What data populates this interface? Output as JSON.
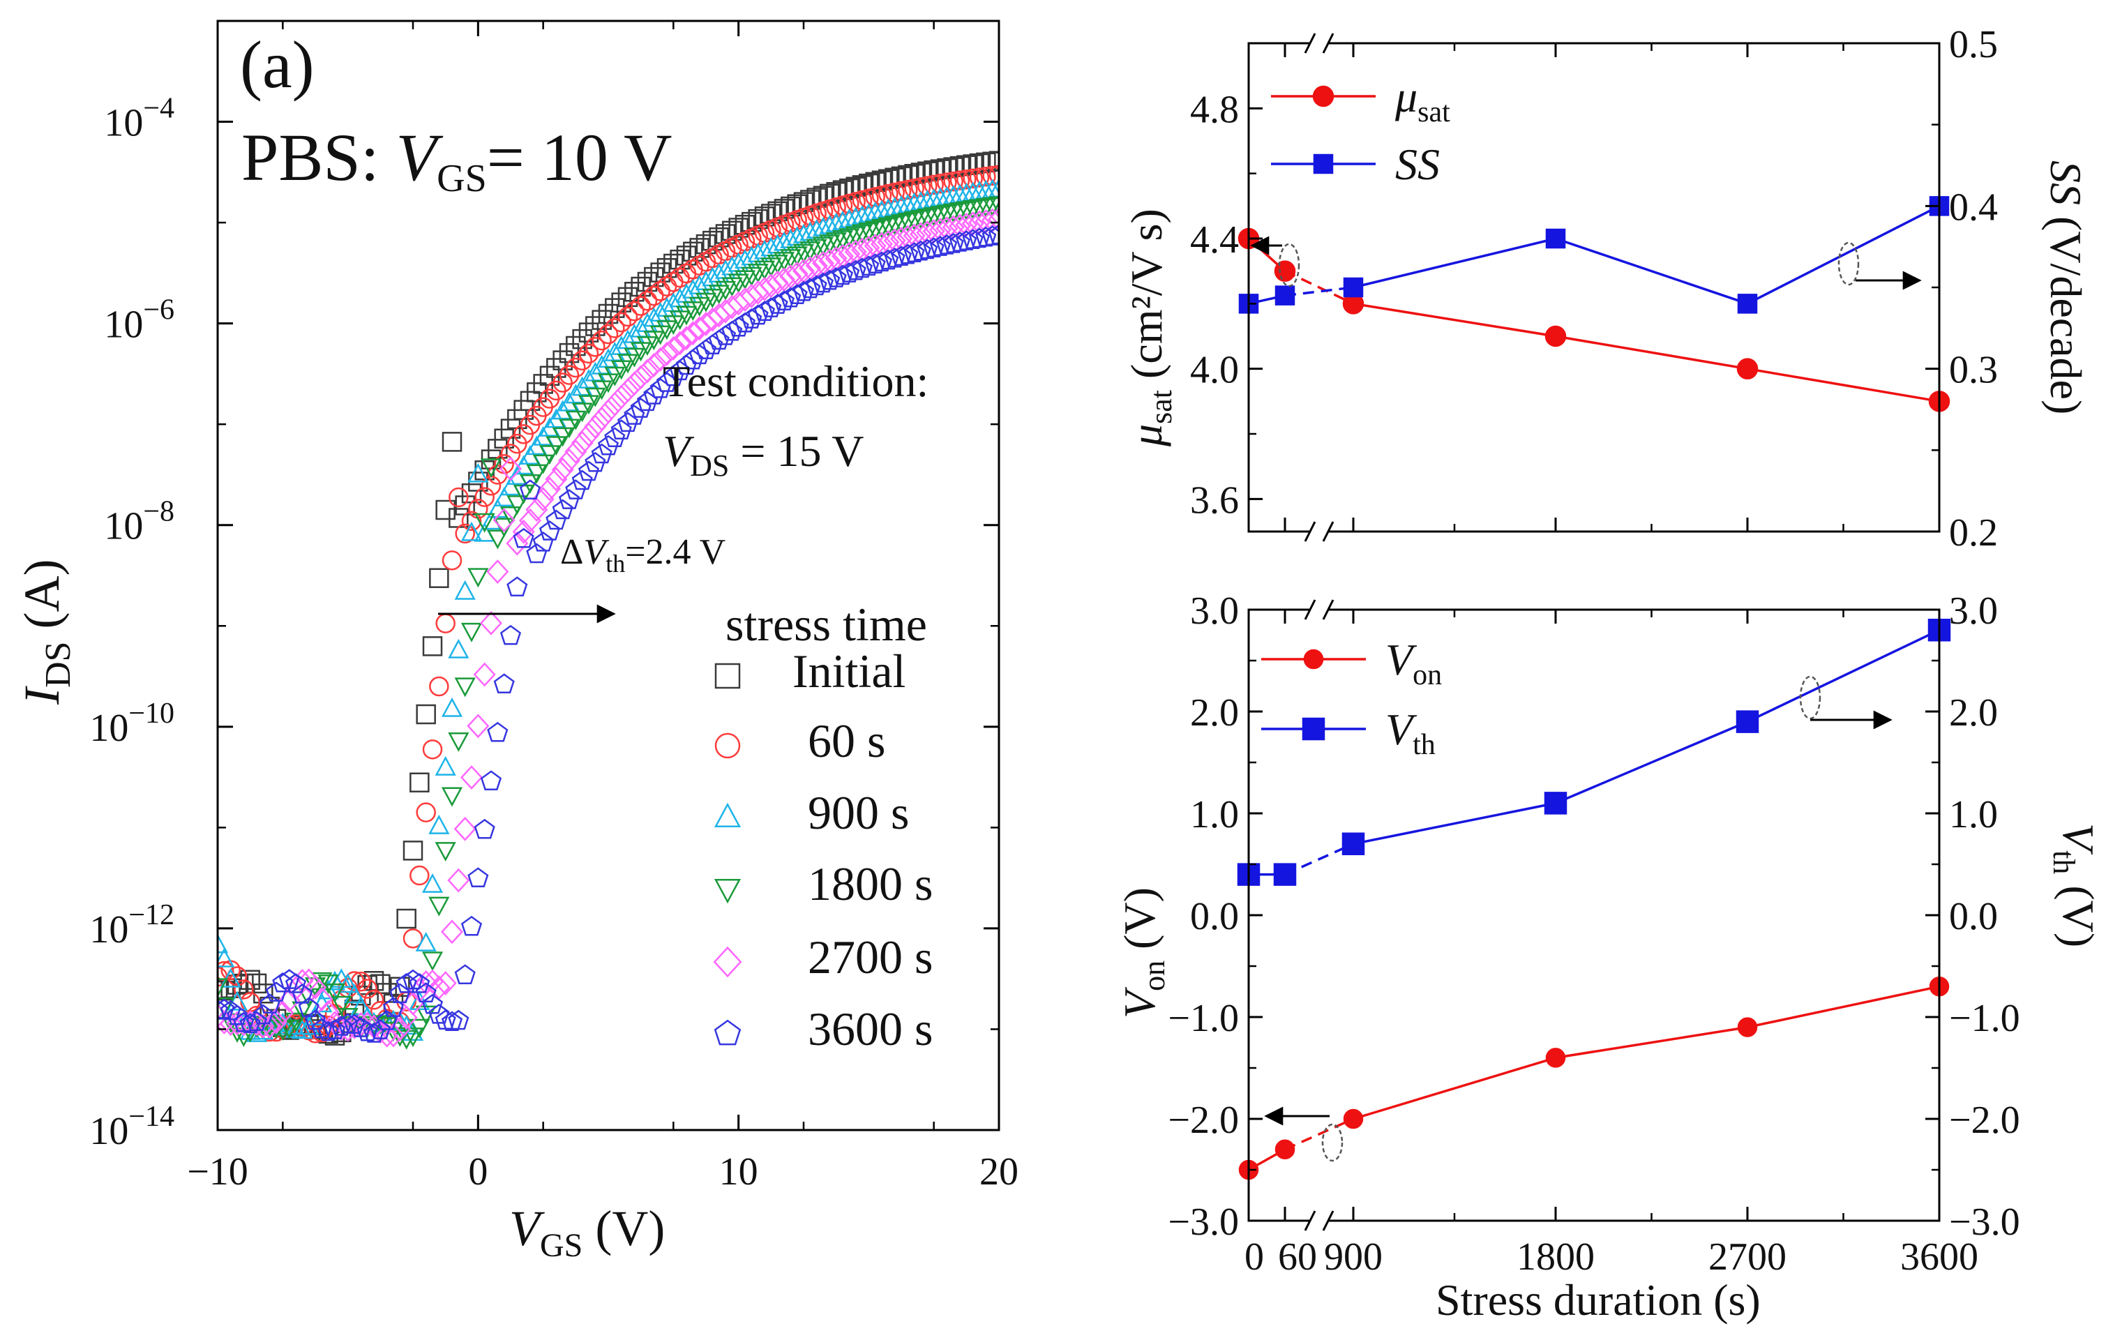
{
  "chart_data": [
    {
      "id": "a",
      "type": "scatter",
      "panel_label": "(a)",
      "title": "PBS: V_GS = 10 V",
      "title_parts": {
        "prefix": "PBS: ",
        "var": "V",
        "sub": "GS",
        "suffix": "= 10 V"
      },
      "xlabel": {
        "var": "V",
        "sub": "GS",
        "unit": " (V)"
      },
      "ylabel": {
        "var": "I",
        "sub": "DS",
        "unit": " (A)"
      },
      "xlim": [
        -10,
        20
      ],
      "ylim_log10": [
        -14,
        -3
      ],
      "yscale": "log",
      "x_ticks": [
        "−10",
        "0",
        "10",
        "20"
      ],
      "y_ticks": [
        {
          "base": "10",
          "exp": "−4"
        },
        {
          "base": "10",
          "exp": "−6"
        },
        {
          "base": "10",
          "exp": "−8"
        },
        {
          "base": "10",
          "exp": "−10"
        },
        {
          "base": "10",
          "exp": "−12"
        },
        {
          "base": "10",
          "exp": "−14"
        }
      ],
      "annotations": {
        "test_condition": "Test condition:",
        "vds_condition": {
          "var": "V",
          "sub": "DS",
          "text": " = 15 V"
        },
        "delta_vth": {
          "prefix": "Δ",
          "var": "V",
          "sub": "th",
          "text": "=2.4 V"
        }
      },
      "legend_title": "stress time",
      "series": [
        {
          "name": "Initial",
          "marker": "square",
          "color": "#3a3a3a",
          "shift_v": 0.0
        },
        {
          "name": "60 s",
          "marker": "circle",
          "color": "#ff3b3b",
          "shift_v": 0.3
        },
        {
          "name": "900 s",
          "marker": "triangle-up",
          "color": "#1eb4e8",
          "shift_v": 0.8
        },
        {
          "name": "1800 s",
          "marker": "triangle-down",
          "color": "#1a9a3a",
          "shift_v": 1.1
        },
        {
          "name": "2700 s",
          "marker": "diamond",
          "color": "#ff66ff",
          "shift_v": 1.7
        },
        {
          "name": "3600 s",
          "marker": "pentagon",
          "color": "#3636e0",
          "shift_v": 2.4
        }
      ]
    },
    {
      "id": "b",
      "type": "line",
      "xlabel": "Stress duration (s)",
      "x": [
        0,
        60,
        900,
        1800,
        2700,
        3600
      ],
      "x_ticks": [
        "0",
        "60",
        "900",
        "1800",
        "2700",
        "3600"
      ],
      "left_axis": {
        "label": {
          "var": "μ",
          "sub": "sat",
          "unit": " (cm²/V s)"
        },
        "ylim": [
          3.5,
          5.0
        ],
        "ticks": [
          "3.6",
          "4.0",
          "4.4",
          "4.8"
        ]
      },
      "right_axis": {
        "label": {
          "var": "SS",
          "unit": " (V/decade)"
        },
        "ylim": [
          0.2,
          0.5
        ],
        "ticks": [
          "0.2",
          "0.3",
          "0.4",
          "0.5"
        ]
      },
      "series": [
        {
          "name": "μ_sat",
          "legend_var": "μ",
          "legend_sub": "sat",
          "axis": "left",
          "marker": "circle",
          "color": "#ee1111",
          "values": [
            4.4,
            4.3,
            4.2,
            4.1,
            4.0,
            3.9
          ]
        },
        {
          "name": "SS",
          "legend_var": "SS",
          "legend_sub": "",
          "axis": "right",
          "marker": "square",
          "color": "#1515e0",
          "values": [
            0.34,
            0.345,
            0.35,
            0.38,
            0.34,
            0.4
          ]
        }
      ]
    },
    {
      "id": "c",
      "type": "line",
      "xlabel": "Stress duration (s)",
      "x": [
        0,
        60,
        900,
        1800,
        2700,
        3600
      ],
      "x_ticks": [
        "0",
        "60",
        "900",
        "1800",
        "2700",
        "3600"
      ],
      "left_axis": {
        "label": {
          "var": "V",
          "sub": "on",
          "unit": " (V)"
        },
        "ylim": [
          -3.0,
          3.0
        ],
        "ticks": [
          "3.0",
          "2.0",
          "1.0",
          "0.0",
          "−1.0",
          "−2.0",
          "−3.0"
        ]
      },
      "right_axis": {
        "label": {
          "var": "V",
          "sub": "th",
          "unit": " (V)"
        },
        "ylim": [
          -3.0,
          3.0
        ],
        "ticks": [
          "3.0",
          "2.0",
          "1.0",
          "0.0",
          "−1.0",
          "−2.0",
          "−3.0"
        ]
      },
      "series": [
        {
          "name": "V_on",
          "legend_var": "V",
          "legend_sub": "on",
          "axis": "left",
          "marker": "circle",
          "color": "#ee1111",
          "values": [
            -2.5,
            -2.3,
            -2.0,
            -1.4,
            -1.1,
            -0.7
          ]
        },
        {
          "name": "V_th",
          "legend_var": "V",
          "legend_sub": "th",
          "axis": "right",
          "marker": "square",
          "color": "#1515e0",
          "values": [
            0.4,
            0.4,
            0.7,
            1.1,
            1.9,
            2.8
          ]
        }
      ]
    }
  ]
}
